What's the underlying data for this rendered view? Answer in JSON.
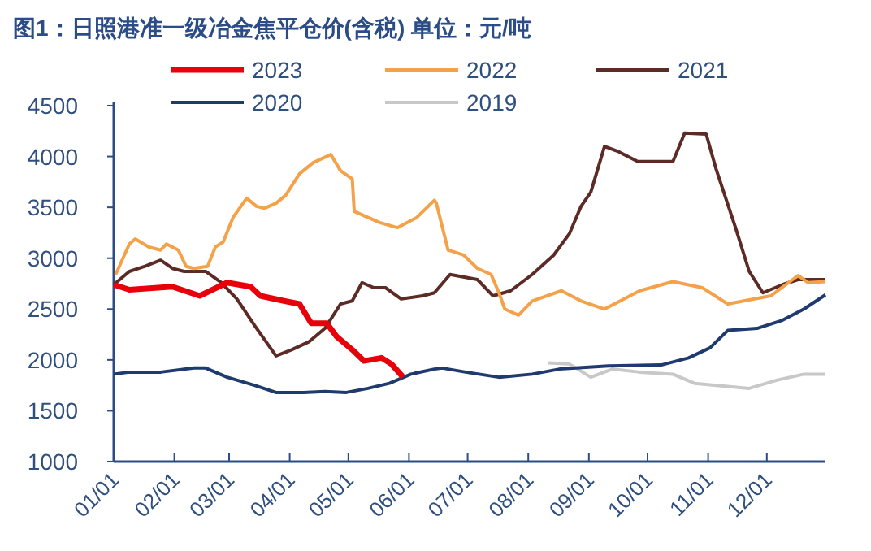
{
  "chart_data": {
    "type": "line",
    "title": "图1：日照港准一级冶金焦平仓价(含税)   单位：元/吨",
    "legend": "top",
    "xlim": [
      "--01-01",
      "--12-31"
    ],
    "xticks": [
      {
        "value": "--01-01",
        "label": "01/01"
      },
      {
        "value": "--02-01",
        "label": "02/01"
      },
      {
        "value": "--03-01",
        "label": "03/01"
      },
      {
        "value": "--04-01",
        "label": "04/01"
      },
      {
        "value": "--05-01",
        "label": "05/01"
      },
      {
        "value": "--06-01",
        "label": "06/01"
      },
      {
        "value": "--07-01",
        "label": "07/01"
      },
      {
        "value": "--08-01",
        "label": "08/01"
      },
      {
        "value": "--09-01",
        "label": "09/01"
      },
      {
        "value": "--10-01",
        "label": "10/01"
      },
      {
        "value": "--11-01",
        "label": "11/01"
      },
      {
        "value": "--12-01",
        "label": "12/01"
      }
    ],
    "ylim": [
      1000,
      4500
    ],
    "yticks": [
      1000,
      1500,
      2000,
      2500,
      3000,
      3500,
      4000,
      4500
    ],
    "series": [
      {
        "name": "2023",
        "color": "#e8000b",
        "x": [
          "--01-01",
          "--01-09",
          "--01-31",
          "--02-14",
          "--02-28",
          "--03-12",
          "--03-17",
          "--03-29",
          "--04-06",
          "--04-12",
          "--04-20",
          "--04-25",
          "--05-03",
          "--05-09",
          "--05-18",
          "--05-23",
          "--05-29"
        ],
        "values": [
          2740,
          2690,
          2720,
          2630,
          2760,
          2720,
          2630,
          2580,
          2550,
          2360,
          2360,
          2230,
          2100,
          1990,
          2020,
          1960,
          1830
        ]
      },
      {
        "name": "2022",
        "color": "#f4a24a",
        "x": [
          "--01-02",
          "--01-09",
          "--01-12",
          "--01-19",
          "--01-25",
          "--01-28",
          "--02-03",
          "--02-07",
          "--02-11",
          "--02-18",
          "--02-22",
          "--02-26",
          "--03-03",
          "--03-10",
          "--03-15",
          "--03-19",
          "--03-25",
          "--03-30",
          "--04-06",
          "--04-13",
          "--04-22",
          "--04-27",
          "--05-03",
          "--05-04",
          "--05-17",
          "--05-26",
          "--06-05",
          "--06-14",
          "--06-15",
          "--06-21",
          "--06-29",
          "--07-06",
          "--07-13",
          "--07-17",
          "--07-20",
          "--07-27",
          "--08-03",
          "--08-18",
          "--08-28",
          "--09-09",
          "--09-27",
          "--10-14",
          "--10-29",
          "--11-11",
          "--11-22",
          "--12-03",
          "--12-17",
          "--12-22",
          "--12-31"
        ],
        "values": [
          2840,
          3140,
          3190,
          3110,
          3080,
          3140,
          3080,
          2920,
          2900,
          2920,
          3110,
          3160,
          3400,
          3590,
          3510,
          3490,
          3540,
          3620,
          3830,
          3940,
          4020,
          3860,
          3780,
          3460,
          3350,
          3300,
          3400,
          3570,
          3540,
          3080,
          3030,
          2900,
          2840,
          2660,
          2500,
          2440,
          2580,
          2680,
          2580,
          2500,
          2680,
          2770,
          2710,
          2550,
          2590,
          2630,
          2830,
          2760,
          2770
        ]
      },
      {
        "name": "2021",
        "color": "#5c2b26",
        "x": [
          "--01-01",
          "--01-09",
          "--01-17",
          "--01-25",
          "--01-31",
          "--02-06",
          "--02-17",
          "--02-25",
          "--03-05",
          "--03-14",
          "--03-25",
          "--04-02",
          "--04-11",
          "--04-19",
          "--04-27",
          "--05-03",
          "--05-08",
          "--05-14",
          "--05-20",
          "--05-28",
          "--06-08",
          "--06-14",
          "--06-22",
          "--07-06",
          "--07-14",
          "--07-23",
          "--08-03",
          "--08-14",
          "--08-22",
          "--08-28",
          "--09-02",
          "--09-09",
          "--09-16",
          "--09-26",
          "--10-14",
          "--10-20",
          "--10-31",
          "--11-05",
          "--11-15",
          "--11-22",
          "--11-29",
          "--12-09",
          "--12-17",
          "--12-31"
        ],
        "values": [
          2740,
          2870,
          2920,
          2980,
          2900,
          2870,
          2870,
          2760,
          2600,
          2340,
          2040,
          2100,
          2180,
          2310,
          2550,
          2580,
          2760,
          2710,
          2710,
          2600,
          2630,
          2660,
          2840,
          2790,
          2630,
          2680,
          2840,
          3030,
          3240,
          3510,
          3650,
          4100,
          4050,
          3950,
          3950,
          4230,
          4220,
          3880,
          3300,
          2870,
          2660,
          2740,
          2790,
          2790
        ]
      },
      {
        "name": "2020",
        "color": "#1f3a6e",
        "x": [
          "--01-01",
          "--01-09",
          "--01-25",
          "--02-11",
          "--02-17",
          "--02-28",
          "--03-14",
          "--03-25",
          "--04-08",
          "--04-19",
          "--04-30",
          "--05-11",
          "--05-22",
          "--06-02",
          "--06-14",
          "--06-18",
          "--06-30",
          "--07-17",
          "--08-03",
          "--08-17",
          "--09-11",
          "--10-08",
          "--10-22",
          "--11-02",
          "--11-11",
          "--11-26",
          "--12-09",
          "--12-20",
          "--12-31"
        ],
        "values": [
          1860,
          1880,
          1880,
          1920,
          1920,
          1830,
          1750,
          1680,
          1680,
          1690,
          1680,
          1720,
          1770,
          1860,
          1910,
          1920,
          1880,
          1830,
          1860,
          1910,
          1940,
          1950,
          2020,
          2120,
          2290,
          2310,
          2390,
          2500,
          2640
        ]
      },
      {
        "name": "2019",
        "color": "#c8c8c8",
        "x": [
          "--08-11",
          "--08-22",
          "--09-02",
          "--09-13",
          "--09-27",
          "--10-14",
          "--10-25",
          "--11-11",
          "--11-22",
          "--12-06",
          "--12-20",
          "--12-31"
        ],
        "values": [
          1970,
          1960,
          1830,
          1910,
          1880,
          1860,
          1770,
          1740,
          1720,
          1800,
          1860,
          1860
        ]
      }
    ]
  }
}
